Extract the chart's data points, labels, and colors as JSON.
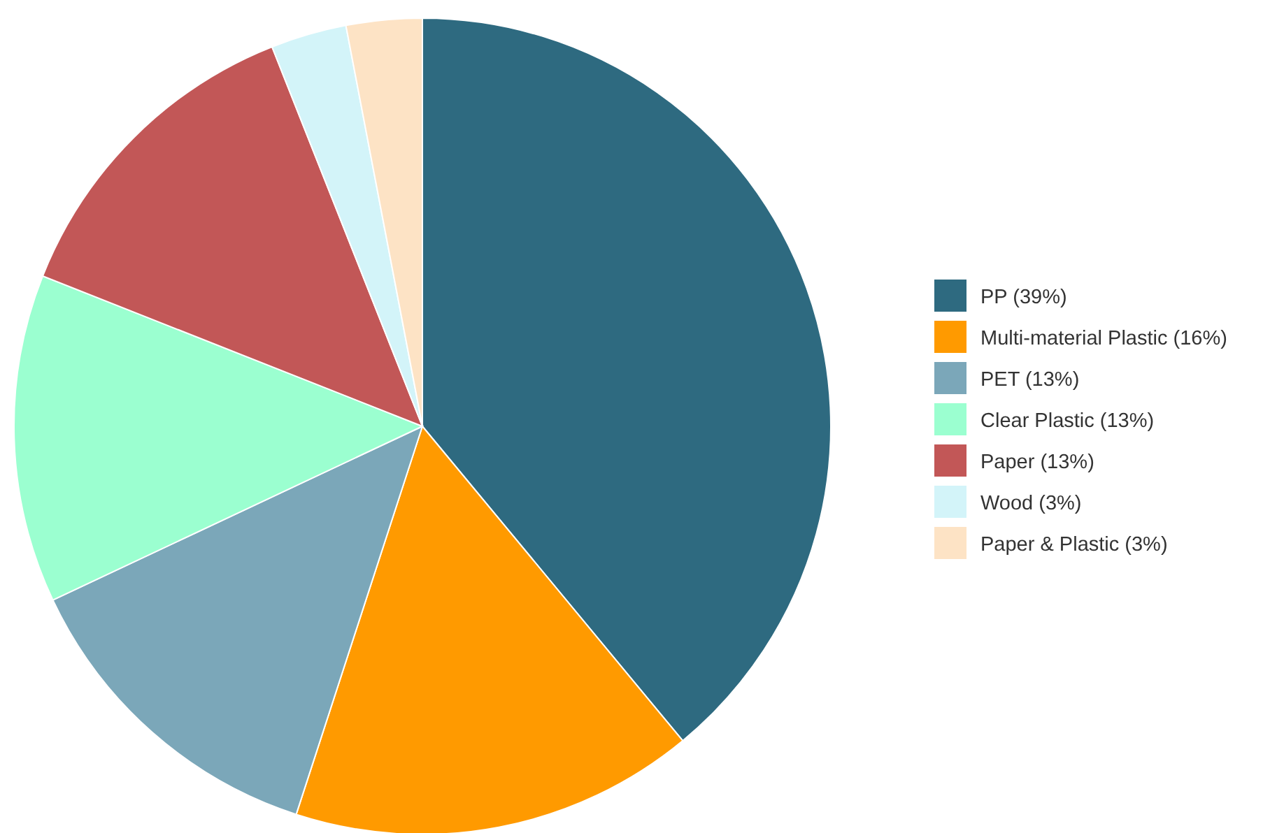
{
  "chart_data": {
    "type": "pie",
    "categories": [
      "PP (39%)",
      "Multi-material Plastic (16%)",
      "PET (13%)",
      "Clear Plastic (13%)",
      "Paper (13%)",
      "Wood (3%)",
      "Paper & Plastic (3%)"
    ],
    "values": [
      39,
      16,
      13,
      13,
      13,
      3,
      3
    ],
    "colors": [
      "#2e6a80",
      "#ff9a00",
      "#7ba7b9",
      "#9bffd0",
      "#c25757",
      "#d3f4f9",
      "#fde3c5"
    ],
    "legend": "right"
  }
}
